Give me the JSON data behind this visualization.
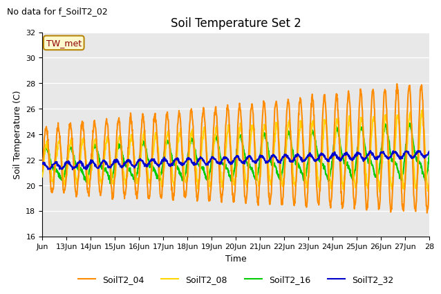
{
  "title": "Soil Temperature Set 2",
  "ylabel": "Soil Temperature (C)",
  "xlabel": "Time",
  "note": "No data for f_SoilT2_02",
  "annotation": "TW_met",
  "ylim": [
    16,
    32
  ],
  "yticks": [
    16,
    18,
    20,
    22,
    24,
    26,
    28,
    30,
    32
  ],
  "x_start_day": 12,
  "x_end_day": 28,
  "x_tick_days": [
    12,
    13,
    14,
    15,
    16,
    17,
    18,
    19,
    20,
    21,
    22,
    23,
    24,
    25,
    26,
    27,
    28
  ],
  "x_tick_labels": [
    "Jun",
    "13Jun",
    "14Jun",
    "15Jun",
    "16Jun",
    "17Jun",
    "18Jun",
    "19Jun",
    "20Jun",
    "21Jun",
    "22Jun",
    "23Jun",
    "24Jun",
    "25Jun",
    "26Jun",
    "27Jun",
    "28"
  ],
  "colors": {
    "SoilT2_04": "#FF8C00",
    "SoilT2_08": "#FFD700",
    "SoilT2_16": "#00CC00",
    "SoilT2_32": "#0000CC"
  },
  "legend_labels": [
    "SoilT2_04",
    "SoilT2_08",
    "SoilT2_16",
    "SoilT2_32"
  ],
  "bg_color": "#E8E8E8",
  "fig_bg": "#FFFFFF",
  "linewidth": 1.5,
  "note_fontsize": 9,
  "title_fontsize": 12,
  "axis_fontsize": 9,
  "tick_fontsize": 8
}
